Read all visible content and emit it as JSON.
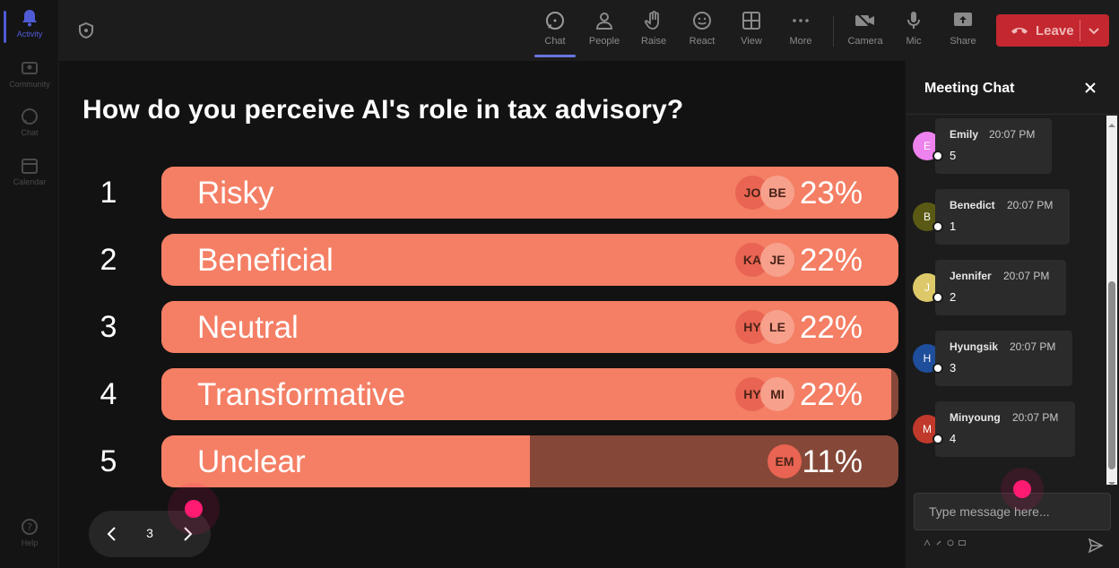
{
  "rail": {
    "items": [
      {
        "label": "Activity",
        "icon": "bell-icon",
        "active": true
      },
      {
        "label": "Community",
        "icon": "community-icon",
        "active": false
      },
      {
        "label": "Chat",
        "icon": "chat-icon",
        "active": false
      },
      {
        "label": "Calendar",
        "icon": "calendar-icon",
        "active": false
      }
    ],
    "help_label": "Help"
  },
  "toolbar": {
    "chat": "Chat",
    "people": "People",
    "raise": "Raise",
    "react": "React",
    "view": "View",
    "more": "More",
    "camera": "Camera",
    "mic": "Mic",
    "share": "Share",
    "leave": "Leave",
    "leave_color": "#c4272f",
    "active_tab": "Chat"
  },
  "poll": {
    "question": "How do you perceive AI's role in tax advisory?",
    "bar_color": "#f47f65",
    "track_color": "#854838",
    "options": [
      {
        "num": "1",
        "label": "Risky",
        "pct_text": "23%",
        "fill_fraction": 1.0,
        "avatars": [
          "JO",
          "BE"
        ]
      },
      {
        "num": "2",
        "label": "Beneficial",
        "pct_text": "22%",
        "fill_fraction": 1.0,
        "avatars": [
          "KA",
          "JE"
        ]
      },
      {
        "num": "3",
        "label": "Neutral",
        "pct_text": "22%",
        "fill_fraction": 1.0,
        "avatars": [
          "HY",
          "LE"
        ]
      },
      {
        "num": "4",
        "label": "Transformative",
        "pct_text": "22%",
        "fill_fraction": 0.99,
        "avatars": [
          "HY",
          "MI"
        ]
      },
      {
        "num": "5",
        "label": "Unclear",
        "pct_text": "11%",
        "fill_fraction": 0.5,
        "avatars": [
          "EM"
        ]
      }
    ],
    "pager": {
      "page": "3"
    }
  },
  "chat": {
    "title": "Meeting Chat",
    "placeholder": "Type message here...",
    "messages": [
      {
        "initial": "E",
        "name": "Emily",
        "time": "20:07 PM",
        "text": "5",
        "avatar_color": "#ee82ee"
      },
      {
        "initial": "B",
        "name": "Benedict",
        "time": "20:07 PM",
        "text": "1",
        "avatar_color": "#5a5a14"
      },
      {
        "initial": "J",
        "name": "Jennifer",
        "time": "20:07 PM",
        "text": "2",
        "avatar_color": "#ddc96a"
      },
      {
        "initial": "H",
        "name": "Hyungsik",
        "time": "20:07 PM",
        "text": "3",
        "avatar_color": "#1f4e9c"
      },
      {
        "initial": "M",
        "name": "Minyoung",
        "time": "20:07 PM",
        "text": "4",
        "avatar_color": "#c0392b"
      }
    ]
  }
}
